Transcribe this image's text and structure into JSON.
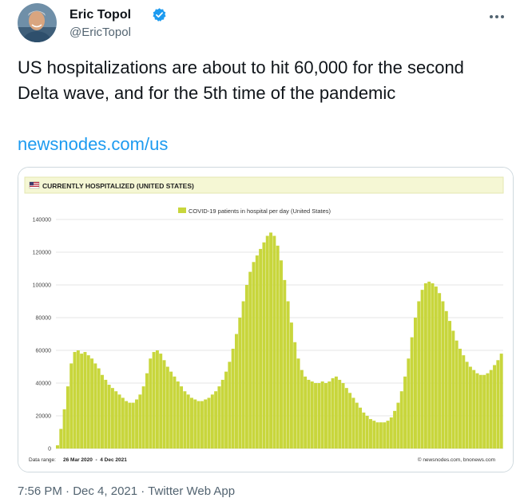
{
  "author": {
    "name": "Eric Topol",
    "handle": "@EricTopol",
    "verified_color": "#1d9bf0"
  },
  "tweet": {
    "text": "US hospitalizations are about to hit 60,000 for the second Delta wave, and for the 5th time of the pandemic",
    "link": "newsnodes.com/us"
  },
  "meta": {
    "time": "7:56 PM",
    "separator": " · ",
    "date": "Dec 4, 2021",
    "app": "Twitter Web App"
  },
  "chart_data": {
    "type": "bar",
    "title": "CURRENTLY HOSPITALIZED (UNITED STATES)",
    "legend": "COVID-19 patients in hospital per day (United States)",
    "legend_position": "top-center",
    "bar_color": "#c8d63c",
    "banner_color": "#f5f7d4",
    "ylim": [
      0,
      140000
    ],
    "yticks": [
      "0",
      "20000",
      "40000",
      "60000",
      "80000",
      "100000",
      "120000",
      "140000"
    ],
    "grid": true,
    "data_range_label": "Data range:",
    "data_range": "26 Mar 2020  -  4 Dec 2021",
    "source": "© newsnodes.com, bnonews.com",
    "series": [
      {
        "values": [
          2000,
          12000,
          24000,
          38000,
          52000,
          59000,
          60000,
          58000,
          59000,
          57000,
          55000,
          52000,
          49000,
          45000,
          42000,
          39000,
          37000,
          35000,
          33000,
          31000,
          29000,
          28000,
          28000,
          30000,
          33000,
          38000,
          46000,
          55000,
          59000,
          60000,
          58000,
          54000,
          50000,
          47000,
          44000,
          41000,
          38000,
          35000,
          33000,
          31000,
          30000,
          29000,
          29000,
          30000,
          31000,
          33000,
          35000,
          38000,
          42000,
          47000,
          53000,
          61000,
          70000,
          80000,
          90000,
          100000,
          108000,
          114000,
          118000,
          122000,
          126000,
          130000,
          132000,
          130000,
          124000,
          115000,
          103000,
          90000,
          77000,
          65000,
          55000,
          48000,
          44000,
          42000,
          41000,
          40000,
          40000,
          41000,
          40000,
          41000,
          43000,
          44000,
          42000,
          40000,
          37000,
          34000,
          31000,
          28000,
          25000,
          22000,
          20000,
          18000,
          17000,
          16000,
          16000,
          16000,
          17000,
          19000,
          23000,
          28000,
          35000,
          44000,
          55000,
          68000,
          80000,
          90000,
          97000,
          101000,
          102000,
          101000,
          99000,
          95000,
          90000,
          84000,
          78000,
          72000,
          66000,
          61000,
          57000,
          53000,
          50000,
          48000,
          46000,
          45000,
          45000,
          46000,
          48000,
          51000,
          54000,
          58000
        ]
      }
    ]
  }
}
